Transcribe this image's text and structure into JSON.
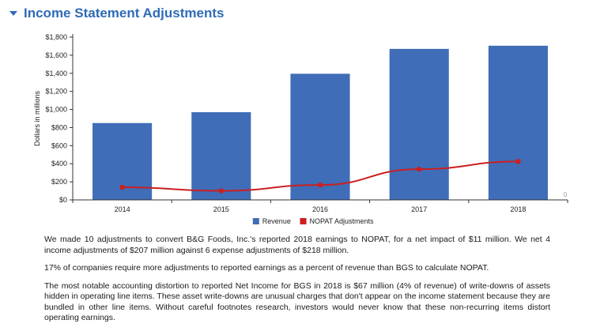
{
  "header": {
    "title": "Income Statement Adjustments"
  },
  "chart_data": {
    "type": "bar",
    "categories": [
      "2014",
      "2015",
      "2016",
      "2017",
      "2018"
    ],
    "series": [
      {
        "name": "Revenue",
        "type": "bar",
        "color": "#3f6db8",
        "values": [
          850,
          970,
          1395,
          1670,
          1705
        ]
      },
      {
        "name": "NOPAT Adjustments",
        "type": "line",
        "color": "#cc1f1f",
        "values": [
          140,
          100,
          165,
          340,
          425
        ]
      }
    ],
    "ylabel": "Dollars in millions",
    "ylim": [
      0,
      1800
    ],
    "yticks": [
      "$0",
      "$200",
      "$400",
      "$600",
      "$800",
      "$1,000",
      "$1,200",
      "$1,400",
      "$1,600",
      "$1,800"
    ],
    "annotation": "0",
    "legend_position": "bottom"
  },
  "paragraphs": [
    "We made 10 adjustments to convert B&G Foods, Inc.'s reported 2018 earnings to NOPAT, for a net impact of $11 million. We net 4 income adjustments of $207 million against 6 expense adjustments of $218 million.",
    "17% of companies require more adjustments to reported earnings as a percent of revenue than BGS to calculate NOPAT.",
    "The most notable accounting distortion to reported Net Income for BGS in 2018 is $67 million (4% of revenue) of write-downs of assets hidden in operating line items. These asset write-downs are unusual charges that don't appear on the income statement because they are bundled in other line items. Without careful footnotes research, investors would never know that these non-recurring items distort operating earnings."
  ]
}
